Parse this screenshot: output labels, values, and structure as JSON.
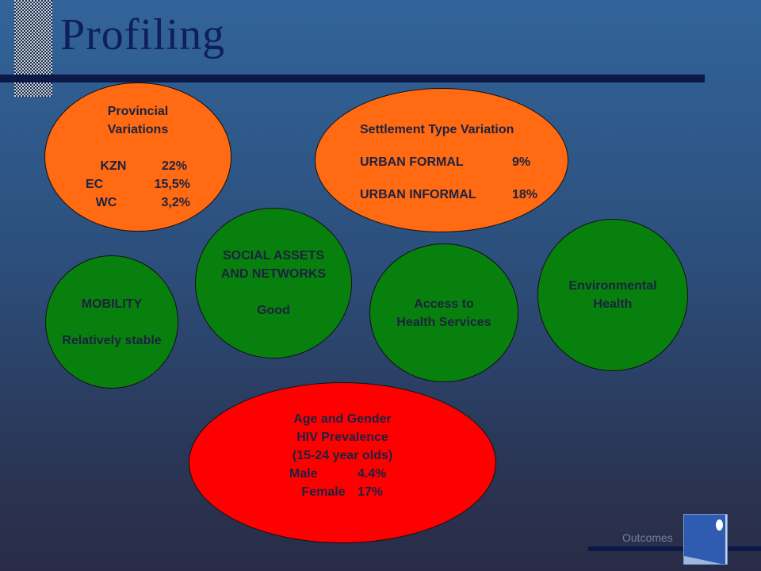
{
  "slide": {
    "title": "Profiling",
    "footer": "Outcomes"
  },
  "bubbles": {
    "provincial": {
      "title_line1": "Provincial",
      "title_line2": "Variations",
      "rows": [
        {
          "label": "KZN",
          "value": "22%"
        },
        {
          "label": "EC",
          "value": "15,5%"
        },
        {
          "label": "WC",
          "value": "3,2%"
        }
      ]
    },
    "settlement": {
      "title": "Settlement Type Variation",
      "rows": [
        {
          "label": "URBAN FORMAL",
          "value": "9%"
        },
        {
          "label": "URBAN INFORMAL",
          "value": "18%"
        }
      ]
    },
    "social": {
      "line1": "SOCIAL ASSETS",
      "line2": "AND NETWORKS",
      "value": "Good"
    },
    "mobility": {
      "title": "MOBILITY",
      "value": "Relatively stable"
    },
    "access": {
      "line1": "Access to",
      "line2": "Health Services"
    },
    "environmental": {
      "line1": "Environmental",
      "line2": "Health"
    },
    "age_gender": {
      "line1": "Age and Gender",
      "line2": "HIV Prevalence",
      "line3": "(15-24 year olds)",
      "rows": [
        {
          "label": "Male",
          "value": "4.4%"
        },
        {
          "label": "Female",
          "value": "17%"
        }
      ]
    }
  },
  "colors": {
    "orange": "#ff6a12",
    "green": "#08800e",
    "red": "#ff0000",
    "title": "#0f1f5c",
    "bar": "#0c1846"
  }
}
